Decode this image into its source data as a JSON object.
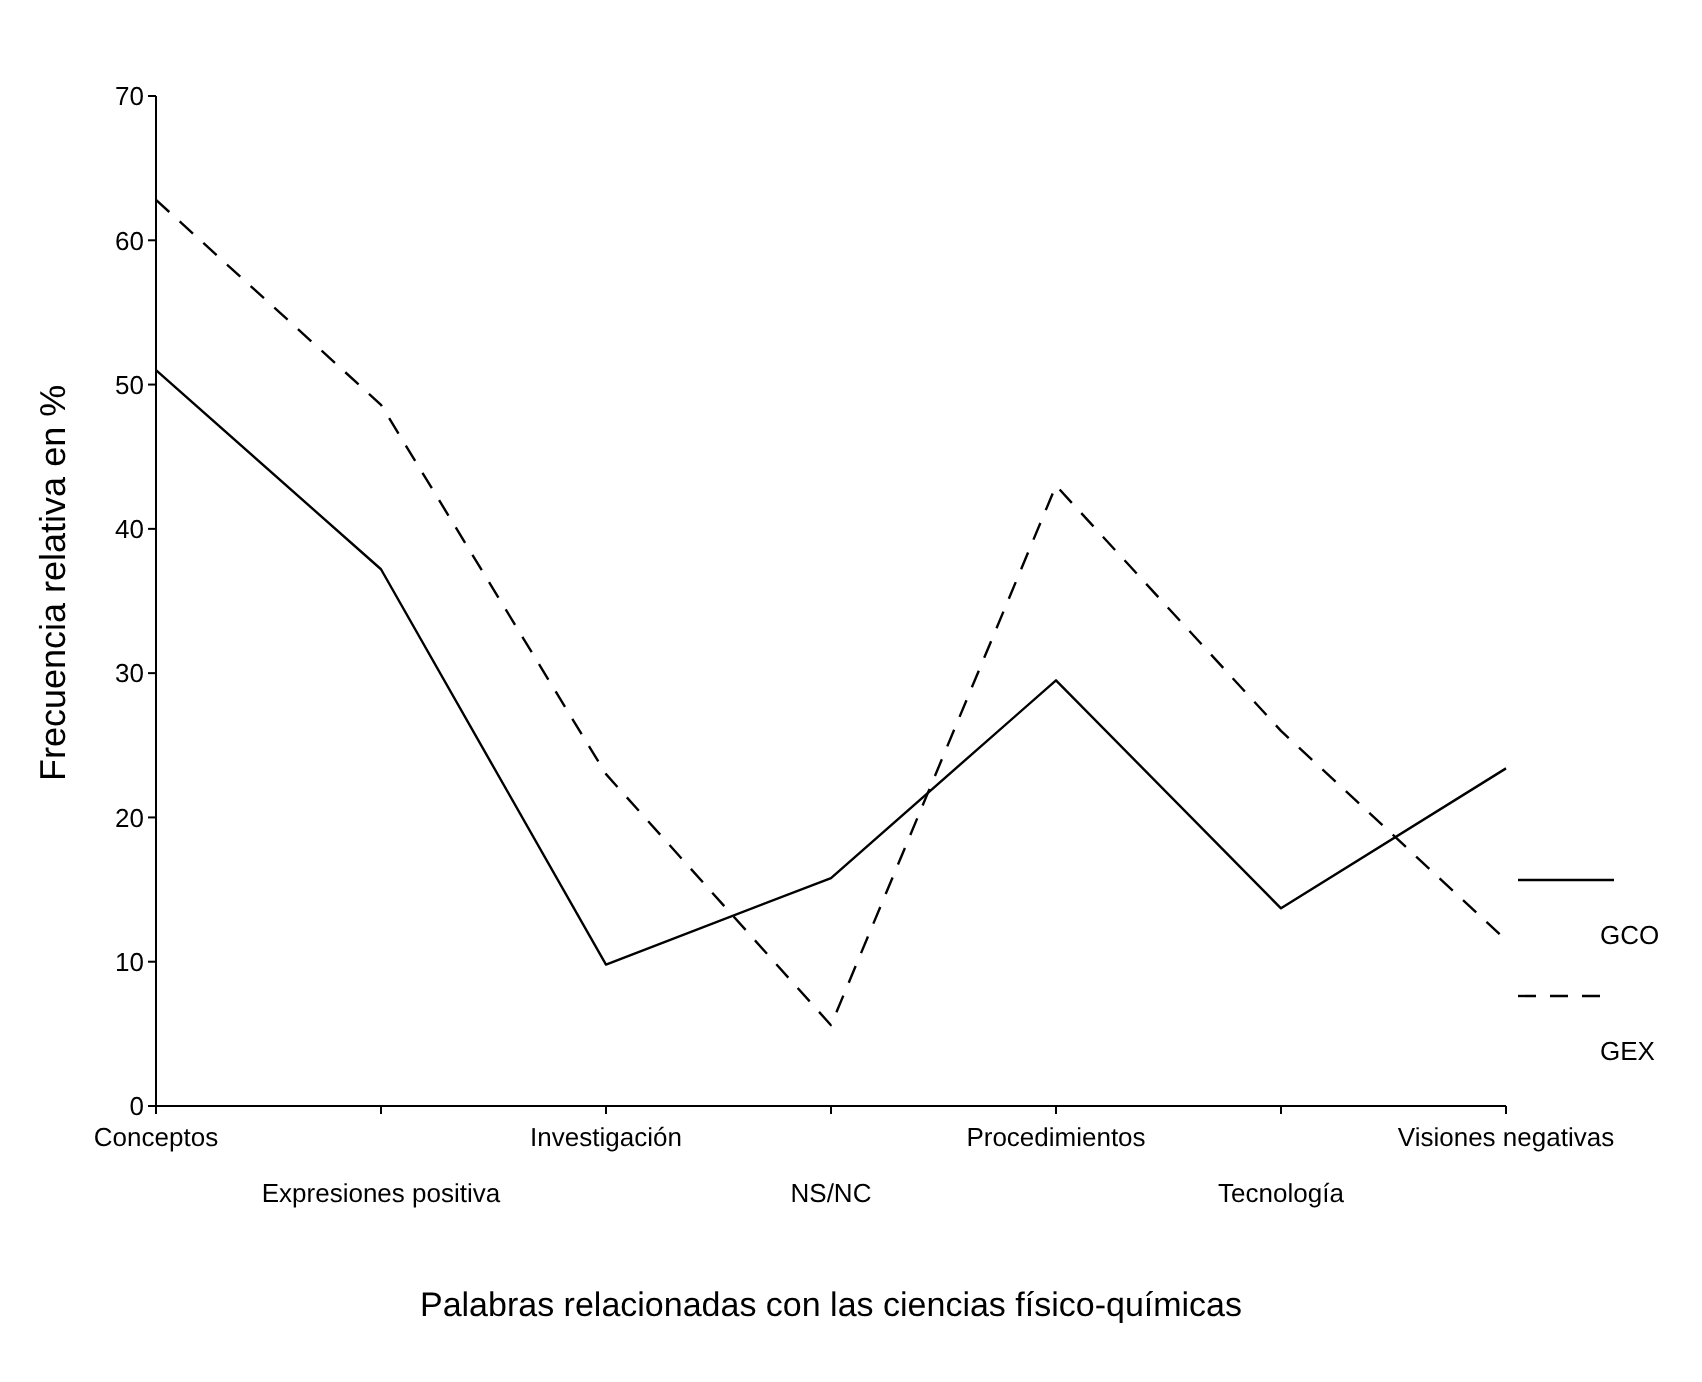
{
  "chart_data": {
    "type": "line",
    "xlabel": "Palabras relacionadas con las ciencias físico-químicas",
    "ylabel": "Frecuencia relativa en %",
    "categories": [
      "Conceptos",
      "Expresiones positiva",
      "Investigación",
      "NS/NC",
      "Procedimientos",
      "Tecnología",
      "Visiones negativas"
    ],
    "series": [
      {
        "name": "GCO",
        "color": "#000000",
        "line_style": "solid",
        "values": [
          51,
          37.2,
          9.8,
          15.8,
          29.5,
          13.7,
          23.4
        ]
      },
      {
        "name": "GEX",
        "color": "#000000",
        "line_style": "dashed",
        "values": [
          62.8,
          48.6,
          23,
          5.6,
          43,
          26,
          11.5
        ]
      }
    ],
    "ylim": [
      0,
      70
    ],
    "yticks": [
      0,
      10,
      20,
      30,
      40,
      50,
      60,
      70
    ],
    "legend": "right",
    "marker": "none"
  }
}
